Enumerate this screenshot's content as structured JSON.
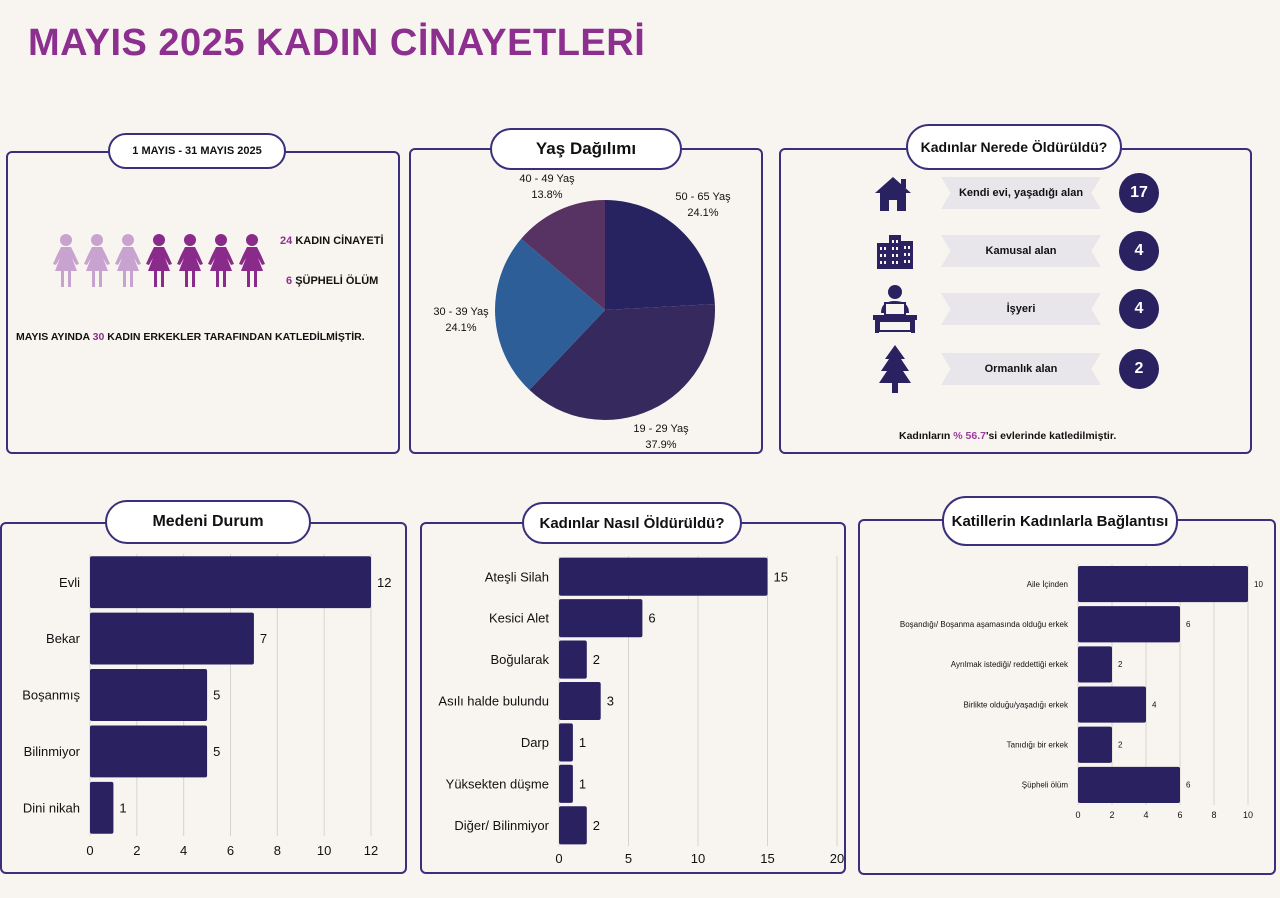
{
  "title": "MAYIS 2025 KADIN CİNAYETLERİ",
  "colors": {
    "accent": "#8c2f8f",
    "navy": "#2a2160",
    "light_fig": "#c9a3cf",
    "dark_fig": "#8a2a8a"
  },
  "summary": {
    "date_range": "1 MAYIS - 31 MAYIS 2025",
    "murders_count": "24",
    "murders_label": "KADIN CİNAYETİ",
    "suspicious_count": "6",
    "suspicious_label": "ŞÜPHELİ ÖLÜM",
    "footer_pre": "MAYIS AYINDA ",
    "footer_num": "30",
    "footer_post": " KADIN ERKEKLER TARAFINDAN KATLEDİLMİŞTİR.",
    "figures_light": 3,
    "figures_dark": 4
  },
  "locations": {
    "title": "Kadınlar Nerede Öldürüldü?",
    "items": [
      {
        "label": "Kendi evi, yaşadığı alan",
        "count": "17",
        "icon": "house-icon"
      },
      {
        "label": "Kamusal alan",
        "count": "4",
        "icon": "buildings-icon"
      },
      {
        "label": "İşyeri",
        "count": "4",
        "icon": "office-desk-icon"
      },
      {
        "label": "Ormanlık alan",
        "count": "2",
        "icon": "tree-icon"
      }
    ],
    "footer_pre": "Kadınların ",
    "footer_pct": "% 56.7",
    "footer_post": "'si evlerinde katledilmiştir."
  },
  "chart_data": [
    {
      "type": "pie",
      "title": "Yaş Dağılımı",
      "categories": [
        "50 - 65 Yaş",
        "19 - 29 Yaş",
        "30 - 39 Yaş",
        "40 - 49 Yaş"
      ],
      "values": [
        24.1,
        37.9,
        24.1,
        13.8
      ],
      "value_labels": [
        "24.1%",
        "37.9%",
        "24.1%",
        "13.8%"
      ],
      "colors": [
        "#272360",
        "#35295e",
        "#2d5e98",
        "#573363"
      ]
    },
    {
      "type": "bar",
      "orientation": "horizontal",
      "title": "Medeni Durum",
      "categories": [
        "Evli",
        "Bekar",
        "Boşanmış",
        "Bilinmiyor",
        "Dini nikah"
      ],
      "values": [
        12,
        7,
        5,
        5,
        1
      ],
      "xlim": [
        0,
        12
      ],
      "ticks": [
        0,
        2,
        4,
        6,
        8,
        10,
        12
      ],
      "grid": true
    },
    {
      "type": "bar",
      "orientation": "horizontal",
      "title": "Kadınlar Nasıl Öldürüldü?",
      "categories": [
        "Ateşli Silah",
        "Kesici Alet",
        "Boğularak",
        "Asılı halde bulundu",
        "Darp",
        "Yüksekten düşme",
        "Diğer/ Bilinmiyor"
      ],
      "values": [
        15,
        6,
        2,
        3,
        1,
        1,
        2
      ],
      "xlim": [
        0,
        20
      ],
      "ticks": [
        0,
        5,
        10,
        15,
        20
      ],
      "grid": true
    },
    {
      "type": "bar",
      "orientation": "horizontal",
      "title": "Katillerin Kadınlarla Bağlantısı",
      "categories": [
        "Aile İçinden",
        "Boşandığı/ Boşanma aşamasında olduğu erkek",
        "Ayrılmak istediği/ reddettiği erkek",
        "Birlikte olduğu/yaşadığı erkek",
        "Tanıdığı bir erkek",
        "Şüpheli ölüm"
      ],
      "values": [
        10,
        6,
        2,
        4,
        2,
        6
      ],
      "xlim": [
        0,
        10
      ],
      "ticks": [
        0,
        2,
        4,
        6,
        8,
        10
      ],
      "grid": true
    }
  ]
}
